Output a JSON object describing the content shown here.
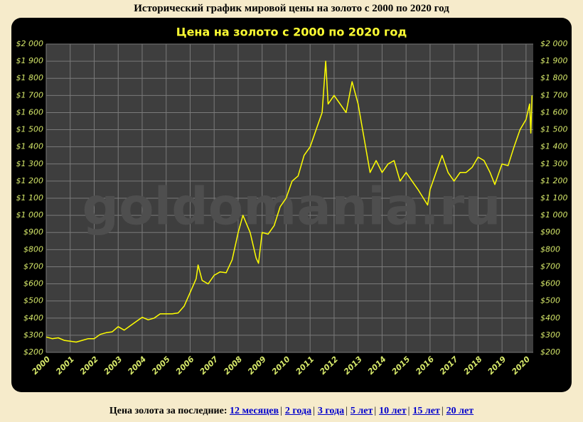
{
  "header": {
    "title": "Исторический график мировой цены на золото с 2000 по 2020 год"
  },
  "chart_data": {
    "type": "line",
    "title": "Цена на золото с 2000 по 2020 год",
    "watermark": "goldomania.ru",
    "color": "#ffff00",
    "x": [
      2000.0,
      2000.25,
      2000.5,
      2000.75,
      2001.0,
      2001.25,
      2001.5,
      2001.75,
      2002.0,
      2002.25,
      2002.5,
      2002.75,
      2003.0,
      2003.25,
      2003.5,
      2003.75,
      2004.0,
      2004.25,
      2004.5,
      2004.75,
      2005.0,
      2005.25,
      2005.5,
      2005.75,
      2006.0,
      2006.25,
      2006.33,
      2006.5,
      2006.75,
      2007.0,
      2007.25,
      2007.5,
      2007.75,
      2008.0,
      2008.2,
      2008.5,
      2008.75,
      2008.85,
      2009.0,
      2009.25,
      2009.5,
      2009.75,
      2010.0,
      2010.25,
      2010.5,
      2010.75,
      2011.0,
      2011.25,
      2011.5,
      2011.65,
      2011.75,
      2012.0,
      2012.25,
      2012.5,
      2012.75,
      2013.0,
      2013.25,
      2013.5,
      2013.75,
      2014.0,
      2014.25,
      2014.5,
      2014.75,
      2015.0,
      2015.25,
      2015.5,
      2015.9,
      2016.0,
      2016.25,
      2016.5,
      2016.75,
      2017.0,
      2017.25,
      2017.5,
      2017.75,
      2018.0,
      2018.25,
      2018.5,
      2018.7,
      2019.0,
      2019.25,
      2019.5,
      2019.75,
      2020.0,
      2020.15,
      2020.2,
      2020.25
    ],
    "values": [
      290,
      280,
      285,
      270,
      265,
      260,
      270,
      280,
      280,
      305,
      315,
      320,
      350,
      330,
      355,
      380,
      405,
      390,
      400,
      425,
      425,
      425,
      430,
      470,
      550,
      630,
      710,
      620,
      600,
      650,
      670,
      665,
      740,
      900,
      1000,
      900,
      750,
      720,
      900,
      890,
      940,
      1050,
      1100,
      1200,
      1230,
      1350,
      1400,
      1500,
      1600,
      1900,
      1650,
      1700,
      1650,
      1600,
      1780,
      1650,
      1450,
      1250,
      1320,
      1250,
      1300,
      1320,
      1200,
      1250,
      1200,
      1150,
      1060,
      1150,
      1250,
      1350,
      1250,
      1200,
      1250,
      1250,
      1280,
      1340,
      1320,
      1250,
      1180,
      1300,
      1290,
      1400,
      1500,
      1560,
      1650,
      1480,
      1700
    ],
    "xlim": [
      2000,
      2020.3
    ],
    "xticks": [
      2000,
      2001,
      2002,
      2003,
      2004,
      2005,
      2006,
      2007,
      2008,
      2009,
      2010,
      2011,
      2012,
      2013,
      2014,
      2015,
      2016,
      2017,
      2018,
      2019,
      2020
    ],
    "ylim": [
      200,
      2000
    ],
    "yticks": [
      {
        "value": 200,
        "label": "$200"
      },
      {
        "value": 300,
        "label": "$300"
      },
      {
        "value": 400,
        "label": "$400"
      },
      {
        "value": 500,
        "label": "$500"
      },
      {
        "value": 600,
        "label": "$600"
      },
      {
        "value": 700,
        "label": "$700"
      },
      {
        "value": 800,
        "label": "$800"
      },
      {
        "value": 900,
        "label": "$900"
      },
      {
        "value": 1000,
        "label": "$1 000"
      },
      {
        "value": 1100,
        "label": "$1 100"
      },
      {
        "value": 1200,
        "label": "$1 200"
      },
      {
        "value": 1300,
        "label": "$1 300"
      },
      {
        "value": 1400,
        "label": "$1 400"
      },
      {
        "value": 1500,
        "label": "$1 500"
      },
      {
        "value": 1600,
        "label": "$1 600"
      },
      {
        "value": 1700,
        "label": "$1 700"
      },
      {
        "value": 1800,
        "label": "$1 800"
      },
      {
        "value": 1900,
        "label": "$1 900"
      },
      {
        "value": 2000,
        "label": "$2 000"
      }
    ],
    "grid": true
  },
  "footer": {
    "label": "Цена золота за последние:",
    "separator": "|",
    "links": [
      "12 месяцев",
      "2 года",
      "3 года",
      "5 лет",
      "10 лет",
      "15 лет",
      "20 лет"
    ]
  }
}
